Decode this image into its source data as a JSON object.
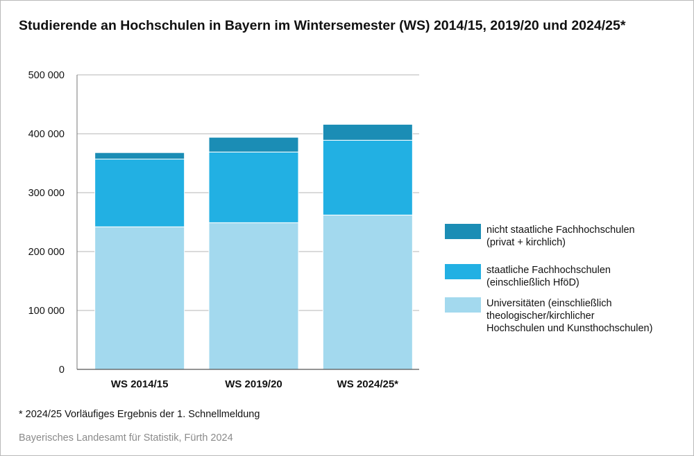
{
  "title": "Studierende an Hochschulen in Bayern im Wintersemester (WS) 2014/15, 2019/20 und 2024/25*",
  "footnote": "* 2024/25 Vorläufiges Ergebnis der 1. Schnellmeldung",
  "source": "Bayerisches Landesamt für Statistik, Fürth 2024",
  "legend": [
    {
      "label": "nicht staatliche Fachhochschulen\n(privat + kirchlich)",
      "color": "#1b8db5"
    },
    {
      "label": "staatliche Fachhochschulen\n(einschließlich HföD)",
      "color": "#22b0e3"
    },
    {
      "label": "Universitäten (einschließlich\ntheologischer/kirchlicher\nHochschulen und Kunsthochschulen)",
      "color": "#a3d9ee"
    }
  ],
  "chart_data": {
    "type": "bar",
    "stacked": true,
    "categories": [
      "WS 2014/15",
      "WS 2019/20",
      "WS 2024/25*"
    ],
    "series": [
      {
        "name": "Universitäten (einschließlich theologischer/kirchlicher Hochschulen und Kunsthochschulen)",
        "color": "#a3d9ee",
        "values": [
          242000,
          249000,
          262000
        ]
      },
      {
        "name": "staatliche Fachhochschulen (einschließlich HföD)",
        "color": "#22b0e3",
        "values": [
          115000,
          120000,
          127000
        ]
      },
      {
        "name": "nicht staatliche Fachhochschulen (privat + kirchlich)",
        "color": "#1b8db5",
        "values": [
          11000,
          25000,
          27000
        ]
      }
    ],
    "ylim": [
      0,
      500000
    ],
    "yticks": [
      0,
      100000,
      200000,
      300000,
      400000,
      500000
    ],
    "ytick_labels": [
      "0",
      "100 000",
      "200 000",
      "300 000",
      "400 000",
      "500 000"
    ],
    "grid": true,
    "legend_position": "right"
  }
}
